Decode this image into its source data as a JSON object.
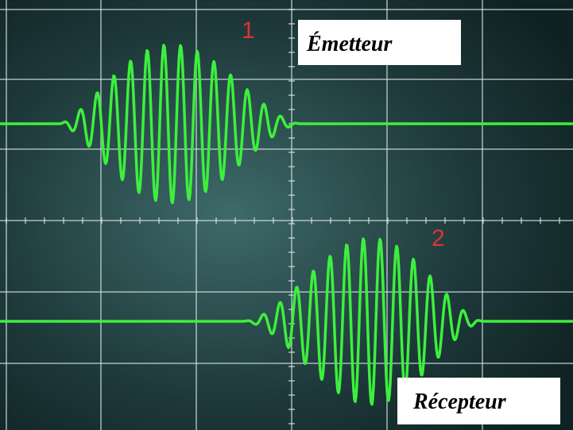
{
  "channel_1": {
    "number": "1",
    "label": "Émetteur"
  },
  "channel_2": {
    "number": "2",
    "label": "Récepteur"
  }
}
